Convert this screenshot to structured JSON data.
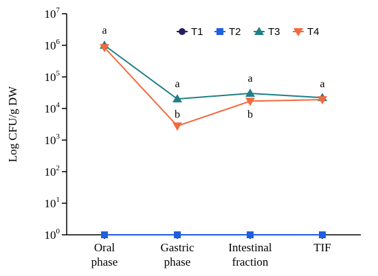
{
  "chart_data": {
    "type": "line",
    "yscale": "log",
    "ylabel": "Log CFU/g DW",
    "ylim": [
      1,
      10000000
    ],
    "yticks": [
      {
        "base": "10",
        "exp": "0",
        "value": 1
      },
      {
        "base": "10",
        "exp": "1",
        "value": 10
      },
      {
        "base": "10",
        "exp": "2",
        "value": 100
      },
      {
        "base": "10",
        "exp": "3",
        "value": 1000
      },
      {
        "base": "10",
        "exp": "4",
        "value": 10000
      },
      {
        "base": "10",
        "exp": "5",
        "value": 100000
      },
      {
        "base": "10",
        "exp": "6",
        "value": 1000000
      },
      {
        "base": "10",
        "exp": "7",
        "value": 10000000
      }
    ],
    "categories": [
      [
        "Oral",
        "phase"
      ],
      [
        "Gastric",
        "phase"
      ],
      [
        "Intestinal",
        "fraction"
      ],
      [
        "TIF"
      ]
    ],
    "legend_position": "top-right",
    "series": [
      {
        "name": "T1",
        "color": "#2b1a5e",
        "marker": "circle",
        "values": [
          1,
          1,
          1,
          1
        ]
      },
      {
        "name": "T2",
        "color": "#1f5fe0",
        "marker": "square",
        "values": [
          1,
          1,
          1,
          1
        ]
      },
      {
        "name": "T3",
        "color": "#1f7f86",
        "marker": "triangle-up",
        "values": [
          1000000,
          20000,
          30000,
          22000
        ]
      },
      {
        "name": "T4",
        "color": "#f26a3d",
        "marker": "triangle-down",
        "values": [
          850000,
          2800,
          17000,
          19000
        ]
      }
    ],
    "annotations": [
      {
        "category": 0,
        "text": "a",
        "y": 3000000
      },
      {
        "category": 1,
        "text": "a",
        "y": 60000
      },
      {
        "category": 1,
        "text": "b",
        "y": 6500
      },
      {
        "category": 2,
        "text": "a",
        "y": 90000
      },
      {
        "category": 2,
        "text": "b",
        "y": 6500
      },
      {
        "category": 3,
        "text": "a",
        "y": 60000
      }
    ]
  }
}
